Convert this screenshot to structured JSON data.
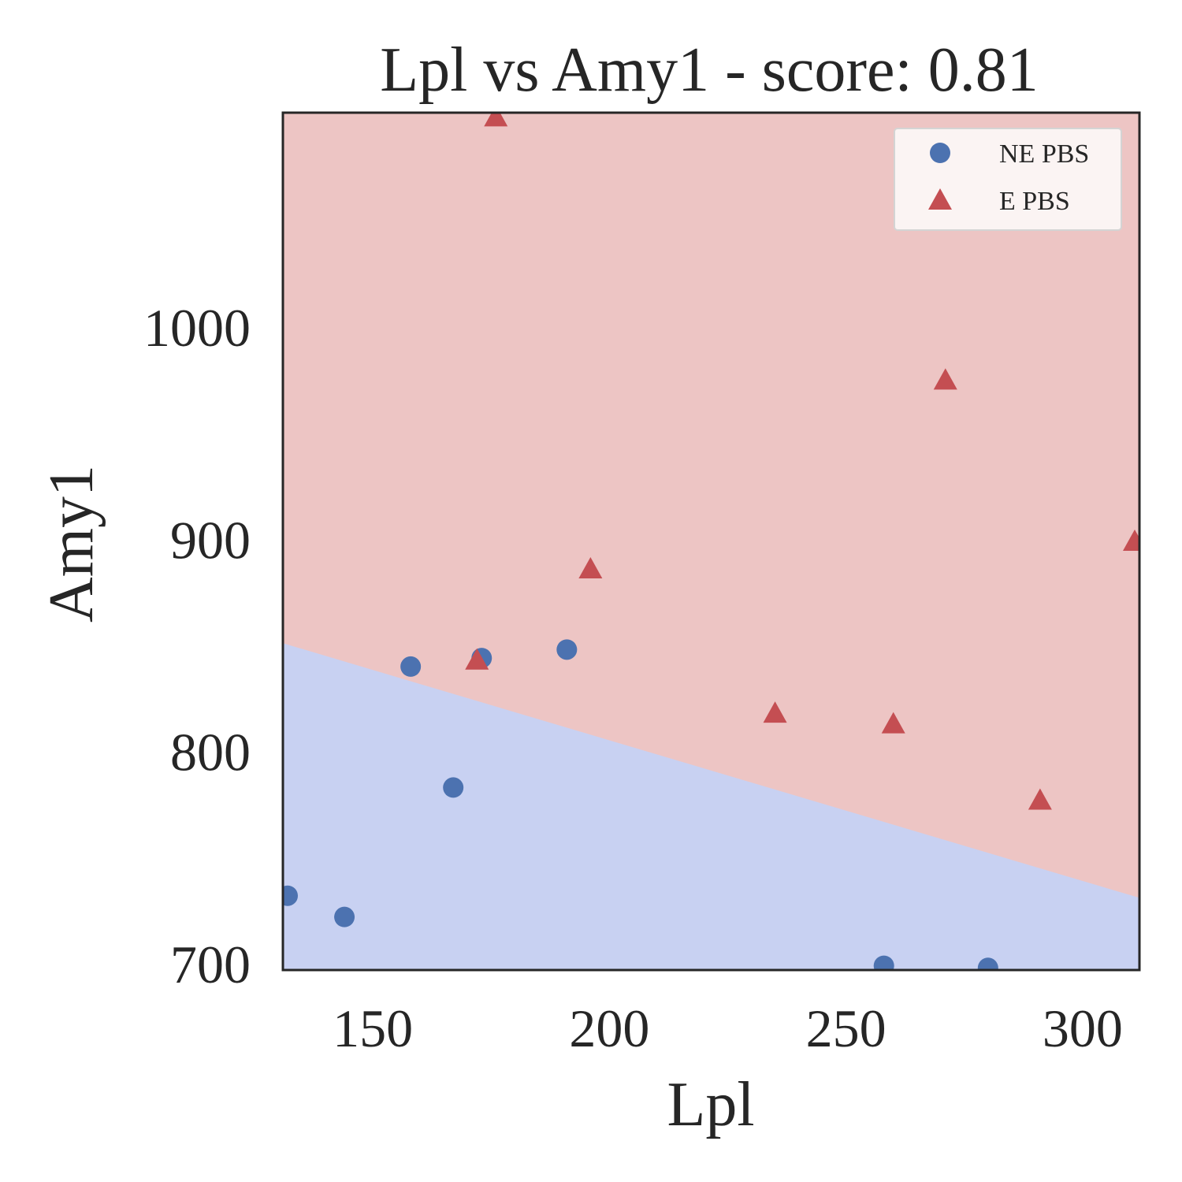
{
  "chart_data": {
    "type": "scatter",
    "title": "Lpl vs Amy1 - score: 0.81",
    "xlabel": "Lpl",
    "ylabel": "Amy1",
    "xlim": [
      131,
      312
    ],
    "ylim": [
      697,
      1101
    ],
    "xticks": [
      150,
      200,
      250,
      300
    ],
    "yticks": [
      700,
      800,
      900,
      1000
    ],
    "grid": false,
    "legend_position": "top-right",
    "decision_boundary": {
      "points": [
        [
          131,
          851
        ],
        [
          312,
          731
        ]
      ],
      "region_below_color": "#c8d1f2",
      "region_above_color": "#edc5c4"
    },
    "series": [
      {
        "name": "NE PBS",
        "marker": "circle",
        "color": "#4c72b0",
        "points": [
          [
            132,
            732
          ],
          [
            144,
            722
          ],
          [
            158,
            840
          ],
          [
            167,
            783
          ],
          [
            173,
            844
          ],
          [
            191,
            848
          ],
          [
            258,
            699
          ],
          [
            280,
            698
          ]
        ]
      },
      {
        "name": "E PBS",
        "marker": "triangle",
        "color": "#c44e52",
        "points": [
          [
            176,
            1099
          ],
          [
            172,
            843
          ],
          [
            196,
            886
          ],
          [
            235,
            818
          ],
          [
            260,
            813
          ],
          [
            271,
            975
          ],
          [
            291,
            777
          ],
          [
            311,
            899
          ]
        ]
      }
    ]
  }
}
